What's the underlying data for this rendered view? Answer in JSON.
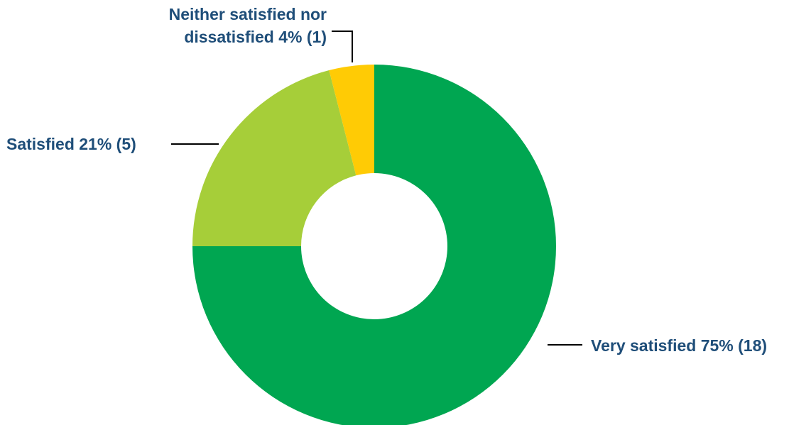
{
  "chart_data": {
    "type": "pie",
    "donut": true,
    "title": "",
    "slices": [
      {
        "label": "Very satisfied",
        "percent": 75,
        "count": 18,
        "display": "Very satisfied 75% (18)",
        "color": "#00a651"
      },
      {
        "label": "Satisfied",
        "percent": 21,
        "count": 5,
        "display": "Satisfied 21% (5)",
        "color": "#a6ce39"
      },
      {
        "label": "Neither satisfied nor dissatisfied",
        "percent": 4,
        "count": 1,
        "display_lines": [
          "Neither satisfied nor",
          "dissatisfied 4% (1)"
        ],
        "color": "#ffcb05"
      }
    ],
    "legend": "none",
    "label_color": "#1f4e79"
  }
}
